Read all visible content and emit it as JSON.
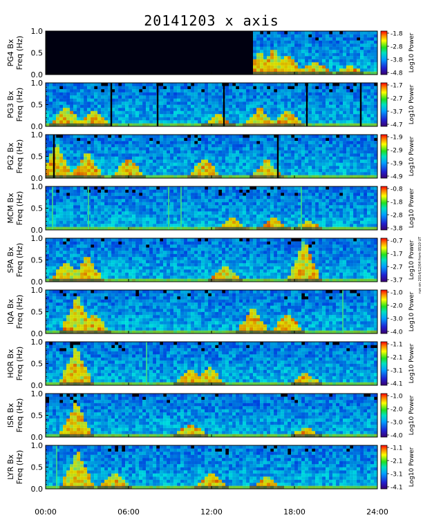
{
  "title": "20141203 x axis",
  "side_note": "run on 2014/12/04 from 0510 UT",
  "chart_data": [
    {
      "type": "heatmap",
      "station": "PG4",
      "ylabel_top": "PG4 Bx",
      "ylabel_bottom": "Freq (Hz)",
      "y_ticks": [
        "0.0",
        "0.5",
        "1.0"
      ],
      "ylim": [
        0,
        1
      ],
      "colorbar_ticks": [
        "-1.8",
        "-2.8",
        "-3.8",
        "-4.8"
      ],
      "colorbar_label": "Log10 Power",
      "clim": [
        -4.8,
        -1.8
      ],
      "data_start_hour": 15.0,
      "activity": [
        {
          "hour": 15.5,
          "level": 0.55
        },
        {
          "hour": 16.5,
          "level": 0.6
        },
        {
          "hour": 17.5,
          "level": 0.5
        },
        {
          "hour": 19.5,
          "level": 0.35
        },
        {
          "hour": 22.0,
          "level": 0.25
        }
      ],
      "spikes": []
    },
    {
      "type": "heatmap",
      "station": "PG3",
      "ylabel_top": "PG3 Bx",
      "ylabel_bottom": "Freq (Hz)",
      "y_ticks": [
        "0.0",
        "0.5",
        "1.0"
      ],
      "ylim": [
        0,
        1
      ],
      "colorbar_ticks": [
        "-1.7",
        "-2.7",
        "-3.7",
        "-4.7"
      ],
      "colorbar_label": "Log10 Power",
      "clim": [
        -4.7,
        -1.7
      ],
      "data_start_hour": 0,
      "activity": [
        {
          "hour": 1.5,
          "level": 0.5
        },
        {
          "hour": 3.5,
          "level": 0.4
        },
        {
          "hour": 12.5,
          "level": 0.3
        },
        {
          "hour": 15.5,
          "level": 0.45
        },
        {
          "hour": 17.5,
          "level": 0.4
        }
      ],
      "gaps": [
        4.75,
        8.1,
        12.9,
        18.9,
        22.8
      ],
      "spikes": []
    },
    {
      "type": "heatmap",
      "station": "PG2",
      "ylabel_top": "PG2 Bx",
      "ylabel_bottom": "Freq (Hz)",
      "y_ticks": [
        "0.0",
        "0.5",
        "1.0"
      ],
      "ylim": [
        0,
        1
      ],
      "colorbar_ticks": [
        "-1.9",
        "-2.9",
        "-3.9",
        "-4.9"
      ],
      "colorbar_label": "Log10 Power",
      "clim": [
        -4.9,
        -1.9
      ],
      "data_start_hour": 0,
      "activity": [
        {
          "hour": 0.8,
          "level": 0.8
        },
        {
          "hour": 3.0,
          "level": 0.6
        },
        {
          "hour": 6.0,
          "level": 0.5
        },
        {
          "hour": 11.5,
          "level": 0.5
        },
        {
          "hour": 16.0,
          "level": 0.45
        }
      ],
      "gaps": [
        0.6,
        16.8
      ],
      "spikes": []
    },
    {
      "type": "heatmap",
      "station": "MCM",
      "ylabel_top": "MCM Bx",
      "ylabel_bottom": "Freq (Hz)",
      "y_ticks": [
        "0.0",
        "0.5",
        "1.0"
      ],
      "ylim": [
        0,
        1
      ],
      "colorbar_ticks": [
        "-0.8",
        "-1.8",
        "-2.8",
        "-3.8"
      ],
      "colorbar_label": "Log10 Power",
      "clim": [
        -3.8,
        -0.8
      ],
      "data_start_hour": 0,
      "activity": [
        {
          "hour": 13.5,
          "level": 0.3
        },
        {
          "hour": 16.5,
          "level": 0.3
        },
        {
          "hour": 19.0,
          "level": 0.25
        }
      ],
      "gaps": [],
      "spikes": [
        0.5,
        3.1,
        8.9,
        9.8,
        18.5
      ]
    },
    {
      "type": "heatmap",
      "station": "SPA",
      "ylabel_top": "SPA Bx",
      "ylabel_bottom": "Freq (Hz)",
      "y_ticks": [
        "0.0",
        "0.5",
        "1.0"
      ],
      "ylim": [
        0,
        1
      ],
      "colorbar_ticks": [
        "-0.7",
        "-1.7",
        "-2.7",
        "-3.7"
      ],
      "colorbar_label": "Log10 Power",
      "clim": [
        -3.7,
        -0.7
      ],
      "data_start_hour": 0,
      "activity": [
        {
          "hour": 1.5,
          "level": 0.5
        },
        {
          "hour": 3.0,
          "level": 0.6
        },
        {
          "hour": 13.0,
          "level": 0.4
        },
        {
          "hour": 18.7,
          "level": 0.95
        }
      ],
      "gaps": [],
      "spikes": []
    },
    {
      "type": "heatmap",
      "station": "IQA",
      "ylabel_top": "IQA Bx",
      "ylabel_bottom": "Freq (Hz)",
      "y_ticks": [
        "0.0",
        "0.5",
        "1.0"
      ],
      "ylim": [
        0,
        1
      ],
      "colorbar_ticks": [
        "-1.0",
        "-2.0",
        "-3.0",
        "-4.0"
      ],
      "colorbar_label": "Log10 Power",
      "clim": [
        -4.0,
        -1.0
      ],
      "data_start_hour": 0,
      "activity": [
        {
          "hour": 2.3,
          "level": 0.9
        },
        {
          "hour": 3.5,
          "level": 0.5
        },
        {
          "hour": 15.0,
          "level": 0.6
        },
        {
          "hour": 17.5,
          "level": 0.5
        }
      ],
      "gaps": [],
      "spikes": [
        21.5
      ]
    },
    {
      "type": "heatmap",
      "station": "HOR",
      "ylabel_top": "HOR Bx",
      "ylabel_bottom": "Freq (Hz)",
      "y_ticks": [
        "0.0",
        "0.5",
        "1.0"
      ],
      "ylim": [
        0,
        1
      ],
      "colorbar_ticks": [
        "-1.1",
        "-2.1",
        "-3.1",
        "-4.1"
      ],
      "colorbar_label": "Log10 Power",
      "clim": [
        -4.1,
        -1.1
      ],
      "data_start_hour": 0,
      "activity": [
        {
          "hour": 2.2,
          "level": 0.9
        },
        {
          "hour": 10.5,
          "level": 0.4
        },
        {
          "hour": 11.8,
          "level": 0.45
        },
        {
          "hour": 18.8,
          "level": 0.3
        }
      ],
      "gaps": [],
      "spikes": [
        7.3
      ]
    },
    {
      "type": "heatmap",
      "station": "ISR",
      "ylabel_top": "ISR Bx",
      "ylabel_bottom": "Freq (Hz)",
      "y_ticks": [
        "0.0",
        "0.5",
        "1.0"
      ],
      "ylim": [
        0,
        1
      ],
      "colorbar_ticks": [
        "-1.0",
        "-2.0",
        "-3.0",
        "-4.0"
      ],
      "colorbar_label": "Log10 Power",
      "clim": [
        -4.0,
        -1.0
      ],
      "data_start_hour": 0,
      "activity": [
        {
          "hour": 2.2,
          "level": 0.8
        },
        {
          "hour": 10.5,
          "level": 0.35
        },
        {
          "hour": 18.8,
          "level": 0.25
        }
      ],
      "gaps": [],
      "spikes": []
    },
    {
      "type": "heatmap",
      "station": "LYR",
      "ylabel_top": "LYR Bx",
      "ylabel_bottom": "Freq (Hz)",
      "y_ticks": [
        "0.0",
        "0.5",
        "1.0"
      ],
      "ylim": [
        0,
        1
      ],
      "colorbar_ticks": [
        "-1.1",
        "-2.1",
        "-3.1",
        "-4.1"
      ],
      "colorbar_label": "Log10 Power",
      "clim": [
        -4.1,
        -1.1
      ],
      "data_start_hour": 0,
      "activity": [
        {
          "hour": 2.3,
          "level": 0.9
        },
        {
          "hour": 5.0,
          "level": 0.4
        },
        {
          "hour": 12.0,
          "level": 0.4
        },
        {
          "hour": 16.0,
          "level": 0.3
        }
      ],
      "gaps": [],
      "spikes": [
        0.8
      ]
    }
  ],
  "x_axis": {
    "ticks": [
      "00:00",
      "06:00",
      "12:00",
      "18:00",
      "24:00"
    ],
    "range_hours": [
      0,
      24
    ]
  }
}
